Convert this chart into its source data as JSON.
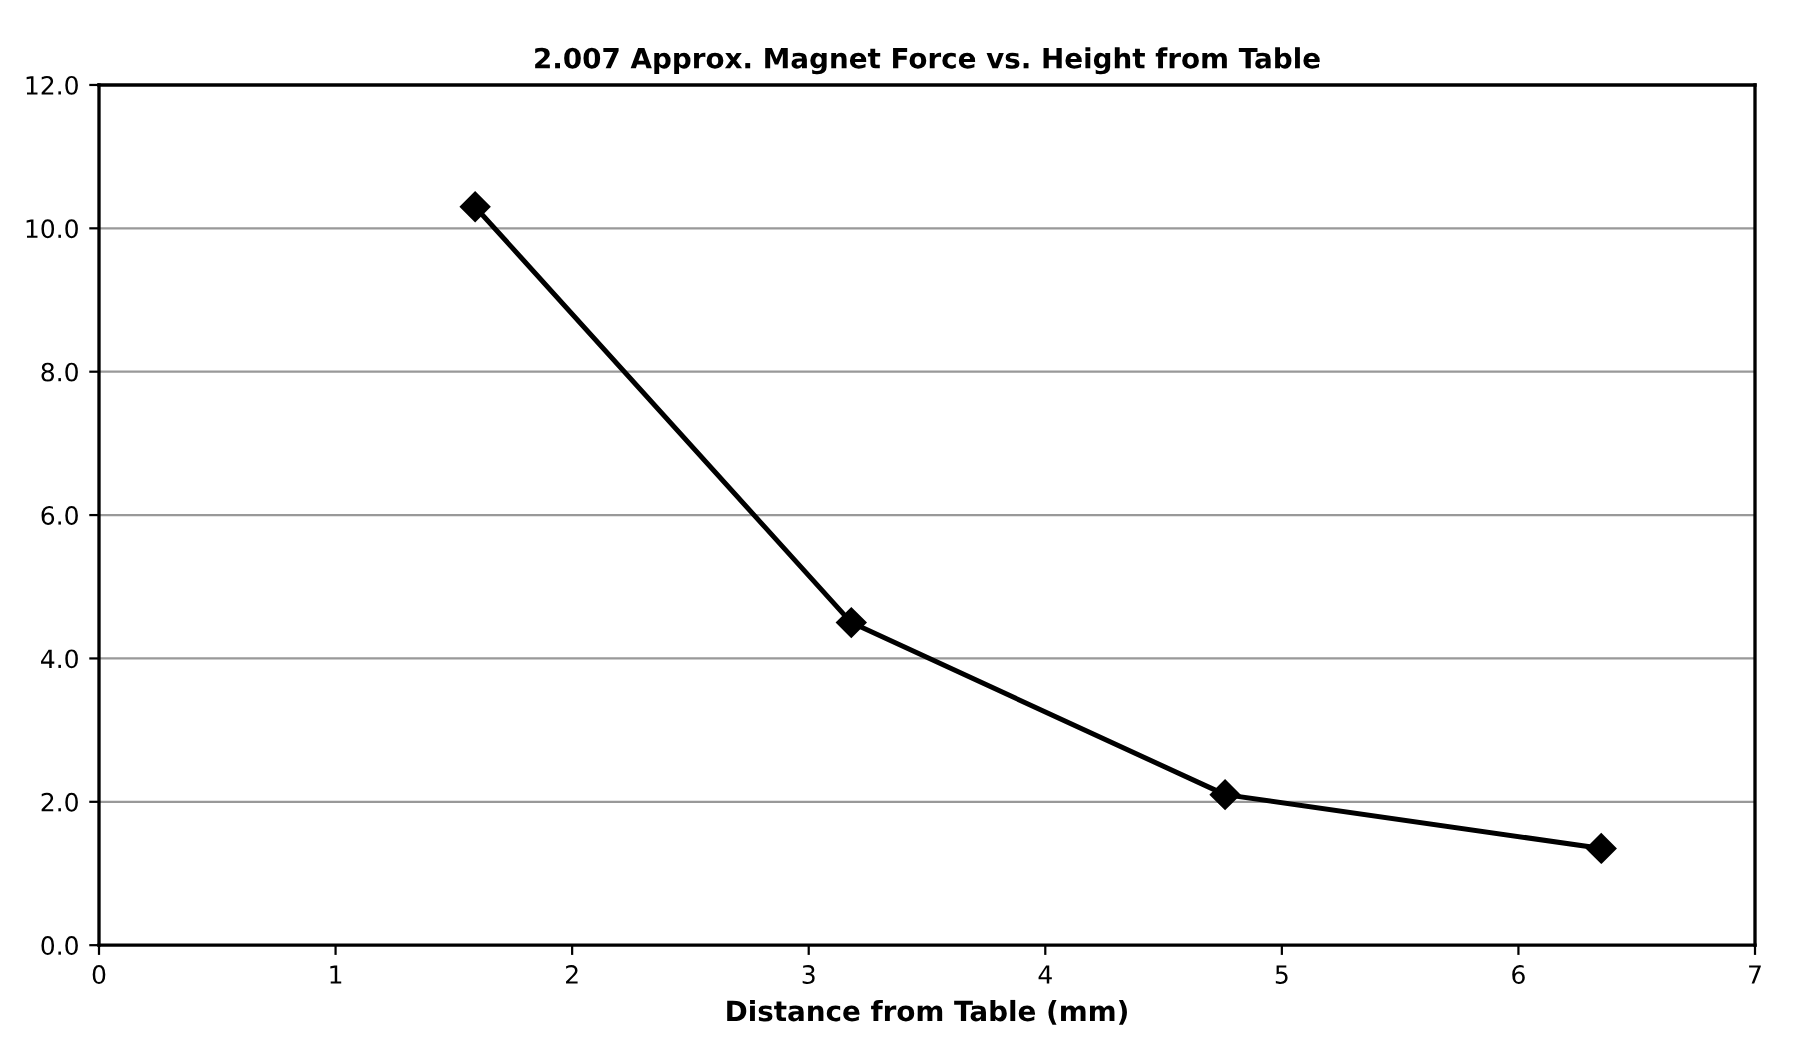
{
  "chart_data": {
    "type": "line",
    "title": "2.007 Approx. Magnet Force vs. Height from Table",
    "xlabel": "Distance from Table (mm)",
    "x": [
      1.59,
      3.18,
      4.76,
      6.35
    ],
    "series": [
      {
        "color": "#000000",
        "values": [
          10.3,
          4.5,
          2.1,
          1.35
        ]
      }
    ],
    "xlim": [
      0,
      7
    ],
    "xticks": [
      0,
      1,
      2,
      3,
      4,
      5,
      6,
      7
    ],
    "ylim": [
      0,
      12
    ],
    "yticks": [
      {
        "value": 0,
        "label": "0.0"
      },
      {
        "value": 2,
        "label": "2.0"
      },
      {
        "value": 4,
        "label": "4.0"
      },
      {
        "value": 6,
        "label": "6.0"
      },
      {
        "value": 8,
        "label": "8.0"
      },
      {
        "value": 10,
        "label": "10.0"
      },
      {
        "value": 12,
        "label": "12.0"
      }
    ],
    "grid": "y",
    "marker": "diamond",
    "line_style": "solid"
  }
}
